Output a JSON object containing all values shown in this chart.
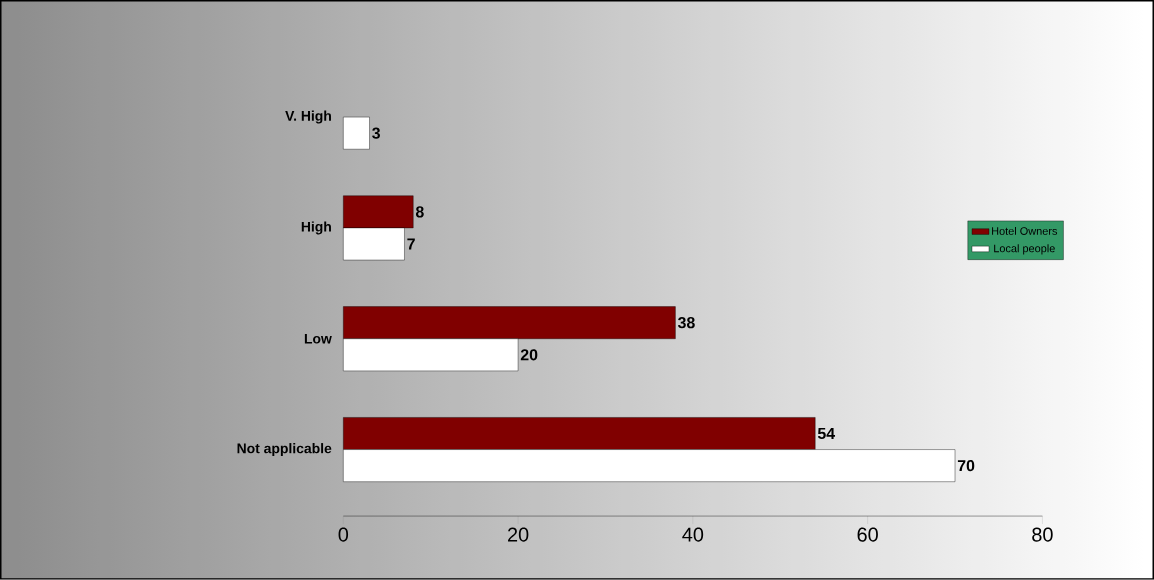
{
  "chart_data": {
    "type": "bar",
    "orientation": "horizontal",
    "categories": [
      "V. High",
      "High",
      "Low",
      "Not applicable"
    ],
    "series": [
      {
        "name": "Hotel Owners",
        "color": "#800000",
        "values": [
          null,
          8,
          38,
          54
        ]
      },
      {
        "name": "Local people",
        "color": "#ffffff",
        "values": [
          3,
          7,
          20,
          70
        ]
      }
    ],
    "xlim": [
      0,
      80
    ],
    "xticks": [
      0,
      20,
      40,
      60,
      80
    ],
    "data_labels": true,
    "legend": "right"
  }
}
